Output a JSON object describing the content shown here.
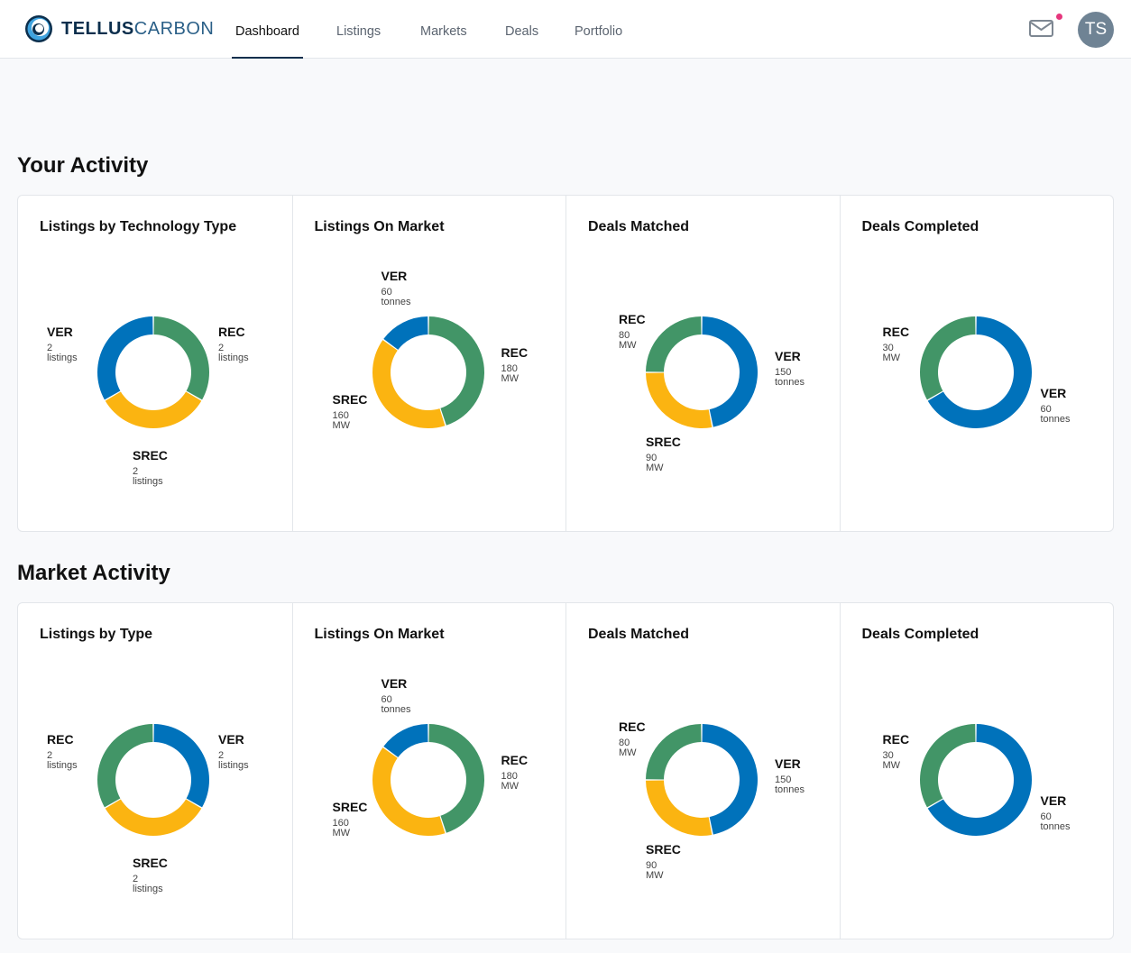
{
  "header": {
    "brand": {
      "part1": "TELLUS",
      "part2": "CARBON"
    },
    "nav": [
      {
        "label": "Dashboard",
        "active": true
      },
      {
        "label": "Listings",
        "active": false
      },
      {
        "label": "Markets",
        "active": false
      },
      {
        "label": "Deals",
        "active": false
      },
      {
        "label": "Portfolio",
        "active": false
      }
    ],
    "mail_icon": "envelope-icon",
    "notification": true,
    "avatar_initials": "TS"
  },
  "colors": {
    "VER": "#0072bb",
    "REC": "#429567",
    "SREC": "#fbb411"
  },
  "sections": [
    {
      "title": "Your Activity",
      "panels": [
        {
          "title": "Listings by Technology Type",
          "chart_data": {
            "type": "pie",
            "slices": [
              {
                "name": "REC",
                "value": 2,
                "unit": "listings"
              },
              {
                "name": "SREC",
                "value": 2,
                "unit": "listings"
              },
              {
                "name": "VER",
                "value": 2,
                "unit": "listings"
              }
            ]
          }
        },
        {
          "title": "Listings On Market",
          "chart_data": {
            "type": "pie",
            "slices": [
              {
                "name": "REC",
                "value": 180,
                "unit": "MW"
              },
              {
                "name": "SREC",
                "value": 160,
                "unit": "MW"
              },
              {
                "name": "VER",
                "value": 60,
                "unit": "tonnes"
              }
            ]
          }
        },
        {
          "title": "Deals Matched",
          "chart_data": {
            "type": "pie",
            "slices": [
              {
                "name": "VER",
                "value": 150,
                "unit": "tonnes"
              },
              {
                "name": "SREC",
                "value": 90,
                "unit": "MW"
              },
              {
                "name": "REC",
                "value": 80,
                "unit": "MW"
              }
            ]
          }
        },
        {
          "title": "Deals Completed",
          "chart_data": {
            "type": "pie",
            "slices": [
              {
                "name": "VER",
                "value": 60,
                "unit": "tonnes"
              },
              {
                "name": "REC",
                "value": 30,
                "unit": "MW"
              }
            ]
          }
        }
      ]
    },
    {
      "title": "Market Activity",
      "panels": [
        {
          "title": "Listings by Type",
          "chart_data": {
            "type": "pie",
            "slices": [
              {
                "name": "VER",
                "value": 2,
                "unit": "listings"
              },
              {
                "name": "SREC",
                "value": 2,
                "unit": "listings"
              },
              {
                "name": "REC",
                "value": 2,
                "unit": "listings"
              }
            ]
          }
        },
        {
          "title": "Listings On Market",
          "chart_data": {
            "type": "pie",
            "slices": [
              {
                "name": "REC",
                "value": 180,
                "unit": "MW"
              },
              {
                "name": "SREC",
                "value": 160,
                "unit": "MW"
              },
              {
                "name": "VER",
                "value": 60,
                "unit": "tonnes"
              }
            ]
          }
        },
        {
          "title": "Deals Matched",
          "chart_data": {
            "type": "pie",
            "slices": [
              {
                "name": "VER",
                "value": 150,
                "unit": "tonnes"
              },
              {
                "name": "SREC",
                "value": 90,
                "unit": "MW"
              },
              {
                "name": "REC",
                "value": 80,
                "unit": "MW"
              }
            ]
          }
        },
        {
          "title": "Deals Completed",
          "chart_data": {
            "type": "pie",
            "slices": [
              {
                "name": "VER",
                "value": 60,
                "unit": "tonnes"
              },
              {
                "name": "REC",
                "value": 30,
                "unit": "MW"
              }
            ]
          }
        }
      ]
    }
  ]
}
